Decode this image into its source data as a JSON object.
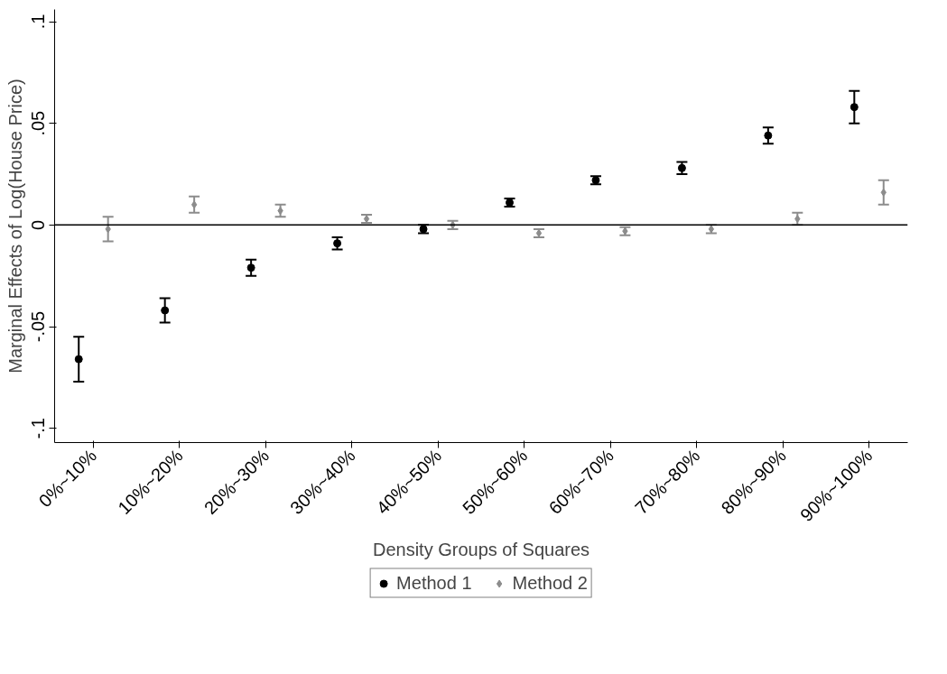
{
  "chart_data": {
    "type": "scatter",
    "xlabel": "Density Groups of Squares",
    "ylabel": "Marginal Effects of Log(House Price)",
    "categories": [
      "0%~10%",
      "10%~20%",
      "20%~30%",
      "30%~40%",
      "40%~50%",
      "50%~60%",
      "60%~70%",
      "70%~80%",
      "80%~90%",
      "90%~100%"
    ],
    "series": [
      {
        "name": "Method 1",
        "color": "#000000",
        "marker": "circle",
        "values": [
          -0.066,
          -0.042,
          -0.021,
          -0.009,
          -0.002,
          0.011,
          0.022,
          0.028,
          0.044,
          0.058
        ],
        "errors": [
          0.011,
          0.006,
          0.004,
          0.003,
          0.002,
          0.002,
          0.002,
          0.003,
          0.004,
          0.008
        ]
      },
      {
        "name": "Method 2",
        "color": "#8c8c8c",
        "marker": "diamond",
        "values": [
          -0.002,
          0.01,
          0.007,
          0.003,
          0.0,
          -0.004,
          -0.003,
          -0.002,
          0.003,
          0.016
        ],
        "errors": [
          0.006,
          0.004,
          0.003,
          0.002,
          0.002,
          0.002,
          0.002,
          0.002,
          0.003,
          0.006
        ]
      }
    ],
    "ylim": [
      -0.107,
      0.106
    ],
    "yticks": [
      {
        "value": -0.1,
        "label": "-.1"
      },
      {
        "value": -0.05,
        "label": "-.05"
      },
      0,
      {
        "value": 0.05,
        "label": ".05"
      },
      {
        "value": 0.1,
        "label": ".1"
      }
    ],
    "ref_lines": [
      {
        "axis": "y",
        "value": 0,
        "color": "#000000"
      }
    ],
    "grid": false,
    "legend": "bottom"
  }
}
